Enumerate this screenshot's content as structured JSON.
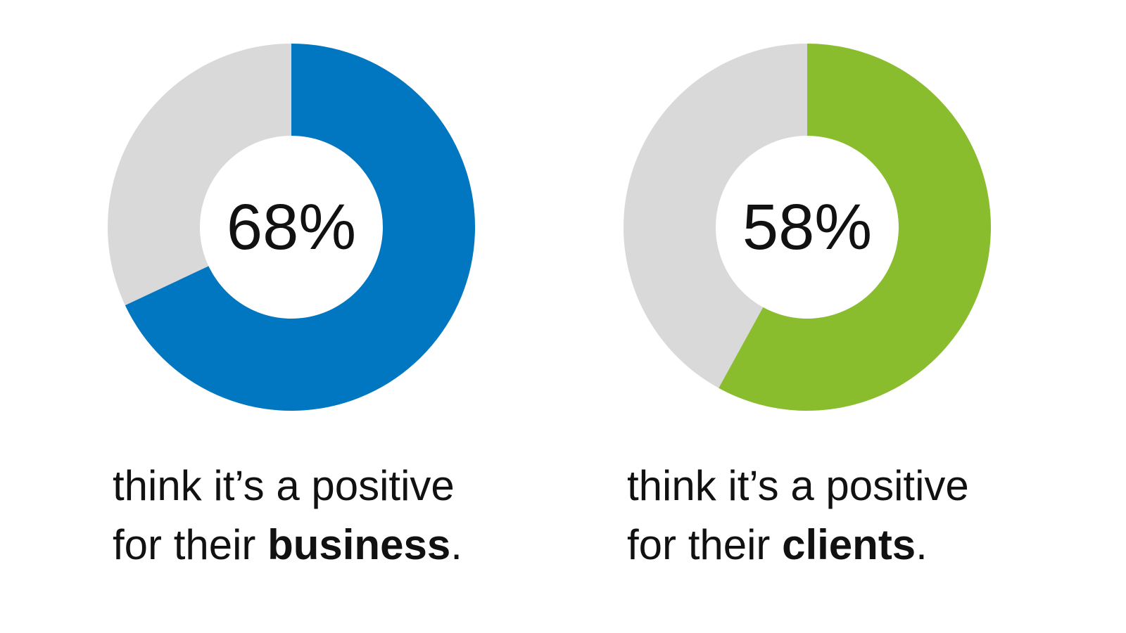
{
  "chart_data": [
    {
      "type": "donut",
      "values": [
        68
      ],
      "value_labels": [
        "68%"
      ],
      "color": "#0077c0",
      "track_color": "#d9d9d9",
      "caption": {
        "line1": "think it’s a positive",
        "line2": "for their",
        "emphasis": "business",
        "end": "."
      }
    },
    {
      "type": "donut",
      "values": [
        58
      ],
      "value_labels": [
        "58%"
      ],
      "color": "#8abd2e",
      "track_color": "#d9d9d9",
      "caption": {
        "line1": "think it’s a positive",
        "line2": "for their",
        "emphasis": "clients",
        "end": "."
      }
    }
  ]
}
